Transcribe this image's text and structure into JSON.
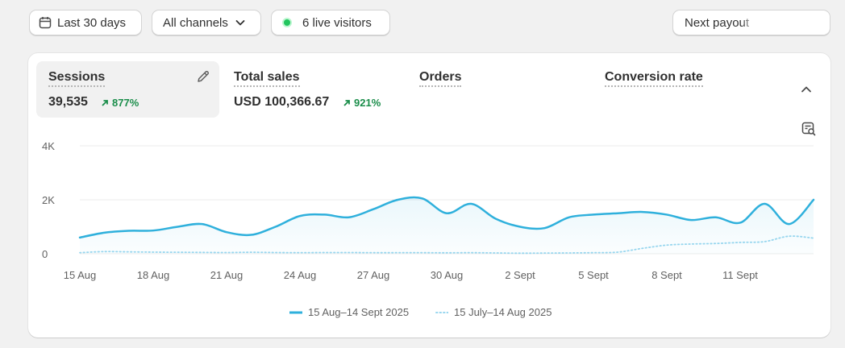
{
  "filters": {
    "date_label": "Last 30 days",
    "channels_label": "All channels",
    "live_label": "6 live visitors",
    "payout_label": "Next payout"
  },
  "colors": {
    "current": "#2fb0dc",
    "previous": "#9ad7ef",
    "positive": "#1a8d4a"
  },
  "metrics": [
    {
      "label": "Sessions",
      "value": "39,535",
      "change": "877%"
    },
    {
      "label": "Total sales",
      "value": "USD 100,366.67",
      "change": "921%"
    },
    {
      "label": "Orders"
    },
    {
      "label": "Conversion rate"
    }
  ],
  "chart_data": {
    "type": "line",
    "ylim": [
      0,
      4000
    ],
    "y_ticks": [
      "4K",
      "2K",
      "0"
    ],
    "y_tick_values": [
      4000,
      2000,
      0
    ],
    "x_labels": [
      "15 Aug",
      "18 Aug",
      "21 Aug",
      "24 Aug",
      "27 Aug",
      "30 Aug",
      "2 Sept",
      "5 Sept",
      "8 Sept",
      "11 Sept"
    ],
    "grid": true,
    "legend_position": "bottom",
    "series": [
      {
        "name": "15 Aug–14 Sept 2025",
        "style": "solid",
        "values": [
          600,
          780,
          850,
          860,
          1000,
          1100,
          800,
          700,
          1000,
          1400,
          1450,
          1350,
          1650,
          2000,
          2050,
          1500,
          1850,
          1300,
          1000,
          950,
          1350,
          1450,
          1500,
          1550,
          1450,
          1250,
          1350,
          1150,
          1850,
          1100,
          2000
        ]
      },
      {
        "name": "15 July–14 Aug 2025",
        "style": "dotted",
        "values": [
          40,
          80,
          70,
          60,
          55,
          50,
          45,
          55,
          45,
          40,
          45,
          45,
          40,
          40,
          40,
          35,
          40,
          30,
          20,
          25,
          30,
          40,
          60,
          200,
          320,
          360,
          380,
          420,
          450,
          650,
          580
        ]
      }
    ]
  }
}
